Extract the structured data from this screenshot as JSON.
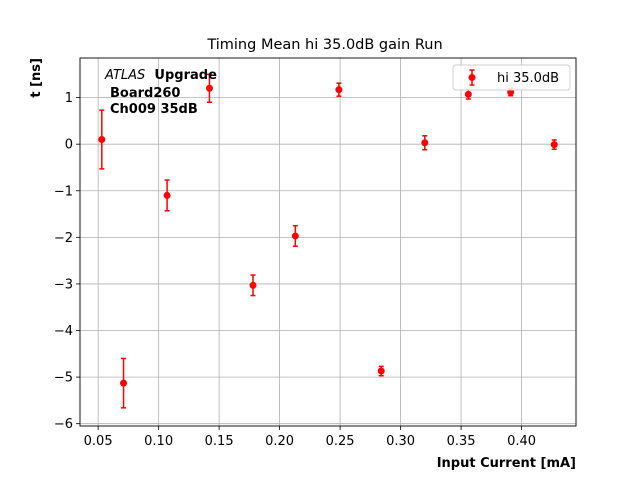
{
  "chart_data": {
    "type": "scatter",
    "title": "Timing Mean hi 35.0dB gain Run",
    "xlabel": "Input Current [mA]",
    "ylabel": "t [ns]",
    "xlim": [
      0.035,
      0.445
    ],
    "ylim": [
      -6.05,
      1.85
    ],
    "xticks": [
      0.05,
      0.1,
      0.15,
      0.2,
      0.25,
      0.3,
      0.35,
      0.4
    ],
    "xtick_labels": [
      "0.05",
      "0.10",
      "0.15",
      "0.20",
      "0.25",
      "0.30",
      "0.35",
      "0.40"
    ],
    "yticks": [
      1,
      0,
      -1,
      -2,
      -3,
      -4,
      -5,
      -6
    ],
    "ytick_labels": [
      "1",
      "0",
      "−1",
      "−2",
      "−3",
      "−4",
      "−5",
      "−6"
    ],
    "grid": true,
    "legend_position": "top-right",
    "annotation": {
      "italic": "ATLAS",
      "bold_line1": "Upgrade",
      "line2": "Board260",
      "line3": "Ch009 35dB"
    },
    "series": [
      {
        "name": "hi 35.0dB",
        "color": "#ff0000",
        "x": [
          0.053,
          0.071,
          0.107,
          0.142,
          0.178,
          0.213,
          0.249,
          0.284,
          0.32,
          0.356,
          0.391,
          0.427
        ],
        "y": [
          0.1,
          -5.13,
          -1.1,
          1.2,
          -3.03,
          -1.97,
          1.17,
          -4.87,
          0.03,
          1.07,
          1.12,
          -0.01
        ],
        "yerr": [
          0.63,
          0.53,
          0.33,
          0.3,
          0.22,
          0.22,
          0.14,
          0.1,
          0.15,
          0.1,
          0.08,
          0.1
        ]
      }
    ]
  }
}
